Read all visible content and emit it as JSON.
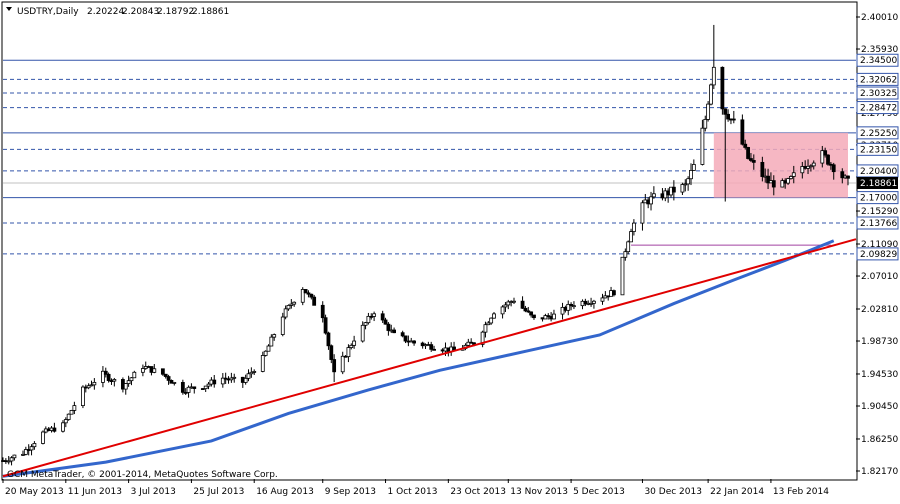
{
  "header": {
    "symbol": "USDTRY,Daily",
    "open": "2.20224",
    "high": "2.20843",
    "low": "2.18792",
    "close": "2.18861"
  },
  "copyright": "GCM MetaTrader, © 2001-2014, MetaQuotes Software Corp.",
  "colors": {
    "background": "#ffffff",
    "candle": "#000000",
    "moving_average": "#3366cc",
    "trendline": "#e00000",
    "hline": "#3355aa",
    "range_box": "#f4aab8",
    "current_price_label": "#000000"
  },
  "chart_data": {
    "type": "candlestick",
    "title": "USDTRY,Daily",
    "ylim": [
      1.8217,
      2.4001
    ],
    "y_ticks": [
      "2.40010",
      "2.35930",
      "2.31850",
      "2.27790",
      "2.23710",
      "2.19630",
      "2.15290",
      "2.11090",
      "2.07010",
      "2.02810",
      "1.98730",
      "1.94530",
      "1.90450",
      "1.86250",
      "1.82170"
    ],
    "x_ticks": [
      "20 May 2013",
      "11 Jun 2013",
      "3 Jul 2013",
      "25 Jul 2013",
      "16 Aug 2013",
      "9 Sep 2013",
      "1 Oct 2013",
      "23 Oct 2013",
      "13 Nov 2013",
      "5 Dec 2013",
      "30 Dec 2013",
      "22 Jan 2014",
      "13 Feb 2014"
    ],
    "x_range": [
      "2013-05-20",
      "2014-03-12"
    ],
    "current_price": "2.18861",
    "horizontal_levels": [
      {
        "value": "2.34500",
        "style": "solid"
      },
      {
        "value": "2.32062",
        "style": "dashed"
      },
      {
        "value": "2.30325",
        "style": "dashed"
      },
      {
        "value": "2.28472",
        "style": "dashed"
      },
      {
        "value": "2.25250",
        "style": "solid"
      },
      {
        "value": "2.23150",
        "style": "dashed"
      },
      {
        "value": "2.20400",
        "style": "dashed"
      },
      {
        "value": "2.17000",
        "style": "solid"
      },
      {
        "value": "2.13766",
        "style": "dashed"
      },
      {
        "value": "2.09829",
        "style": "dashed"
      }
    ],
    "range_box": {
      "x_start": "2014-01-24",
      "x_end": "2014-03-12",
      "y_low": 2.17,
      "y_high": 2.2525
    },
    "short_line": {
      "x_start": "2013-12-26",
      "x_end": "2014-03-06",
      "y": 2.1095
    },
    "trendline": {
      "x_start": "2013-05-20",
      "y_start": 1.815,
      "x_end": "2014-03-12",
      "y_end": 2.117
    },
    "moving_average": {
      "name": "",
      "points": [
        [
          "2013-05-20",
          1.815
        ],
        [
          "2013-06-25",
          1.833
        ],
        [
          "2013-08-01",
          1.86
        ],
        [
          "2013-08-28",
          1.895
        ],
        [
          "2013-09-25",
          1.925
        ],
        [
          "2013-10-20",
          1.95
        ],
        [
          "2013-11-20",
          1.975
        ],
        [
          "2013-12-15",
          1.995
        ],
        [
          "2014-01-10",
          2.035
        ],
        [
          "2014-01-31",
          2.065
        ],
        [
          "2014-02-18",
          2.09
        ],
        [
          "2014-03-07",
          2.115
        ]
      ]
    },
    "price_path": [
      [
        "2013-05-20",
        1.835
      ],
      [
        "2013-05-27",
        1.845
      ],
      [
        "2013-06-03",
        1.87
      ],
      [
        "2013-06-10",
        1.88
      ],
      [
        "2013-06-17",
        1.925
      ],
      [
        "2013-06-24",
        1.945
      ],
      [
        "2013-07-01",
        1.93
      ],
      [
        "2013-07-08",
        1.955
      ],
      [
        "2013-07-15",
        1.945
      ],
      [
        "2013-07-22",
        1.925
      ],
      [
        "2013-07-29",
        1.93
      ],
      [
        "2013-08-05",
        1.94
      ],
      [
        "2013-08-12",
        1.935
      ],
      [
        "2013-08-19",
        1.965
      ],
      [
        "2013-08-26",
        2.02
      ],
      [
        "2013-09-02",
        2.055
      ],
      [
        "2013-09-09",
        2.02
      ],
      [
        "2013-09-13",
        1.945
      ],
      [
        "2013-09-20",
        1.99
      ],
      [
        "2013-09-27",
        2.025
      ],
      [
        "2013-10-04",
        1.995
      ],
      [
        "2013-10-11",
        1.985
      ],
      [
        "2013-10-18",
        1.98
      ],
      [
        "2013-10-25",
        1.975
      ],
      [
        "2013-11-01",
        1.985
      ],
      [
        "2013-11-08",
        2.025
      ],
      [
        "2013-11-15",
        2.04
      ],
      [
        "2013-11-22",
        2.015
      ],
      [
        "2013-11-29",
        2.02
      ],
      [
        "2013-12-06",
        2.035
      ],
      [
        "2013-12-13",
        2.04
      ],
      [
        "2013-12-20",
        2.05
      ],
      [
        "2013-12-26",
        2.13
      ],
      [
        "2013-12-31",
        2.165
      ],
      [
        "2014-01-07",
        2.175
      ],
      [
        "2014-01-14",
        2.185
      ],
      [
        "2014-01-17",
        2.21
      ],
      [
        "2014-01-21",
        2.27
      ],
      [
        "2014-01-24",
        2.34
      ],
      [
        "2014-01-27",
        2.285
      ],
      [
        "2014-01-31",
        2.265
      ],
      [
        "2014-02-05",
        2.22
      ],
      [
        "2014-02-12",
        2.19
      ],
      [
        "2014-02-18",
        2.185
      ],
      [
        "2014-02-24",
        2.21
      ],
      [
        "2014-03-03",
        2.225
      ],
      [
        "2014-03-12",
        2.189
      ]
    ]
  }
}
